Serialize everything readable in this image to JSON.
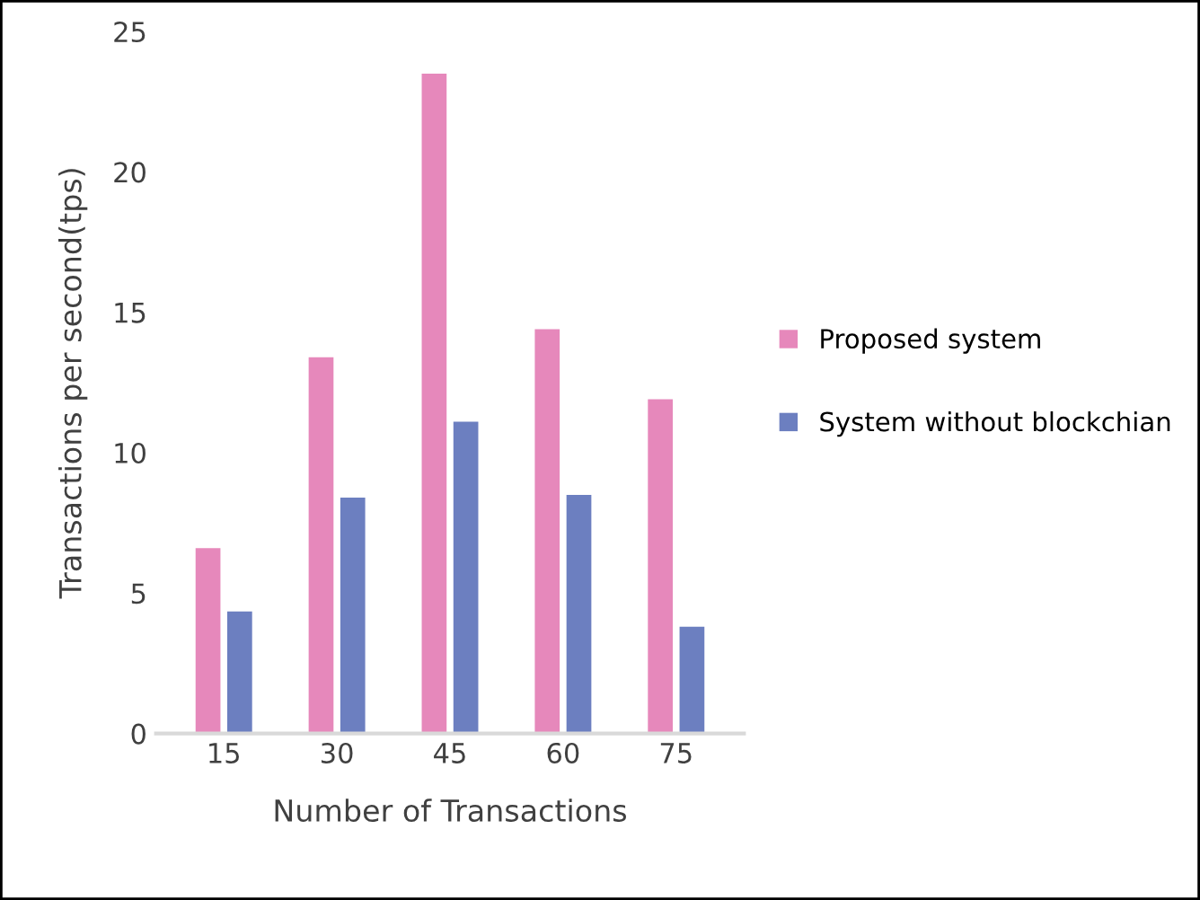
{
  "chart_data": {
    "type": "bar",
    "xlabel": "Number of Transactions",
    "ylabel": "Transactions per second(tps)",
    "categories": [
      "15",
      "30",
      "45",
      "60",
      "75"
    ],
    "series": [
      {
        "name": "Proposed system",
        "color": "#e688bb",
        "values": [
          6.6,
          13.4,
          23.5,
          14.4,
          11.9
        ]
      },
      {
        "name": "System without blockchian",
        "color": "#6c7fc0",
        "values": [
          4.35,
          8.4,
          11.1,
          8.5,
          3.8
        ]
      }
    ],
    "ylim": [
      0,
      25
    ],
    "yticks": [
      0,
      5,
      10,
      15,
      20,
      25
    ],
    "grid": false,
    "legend": "right"
  }
}
